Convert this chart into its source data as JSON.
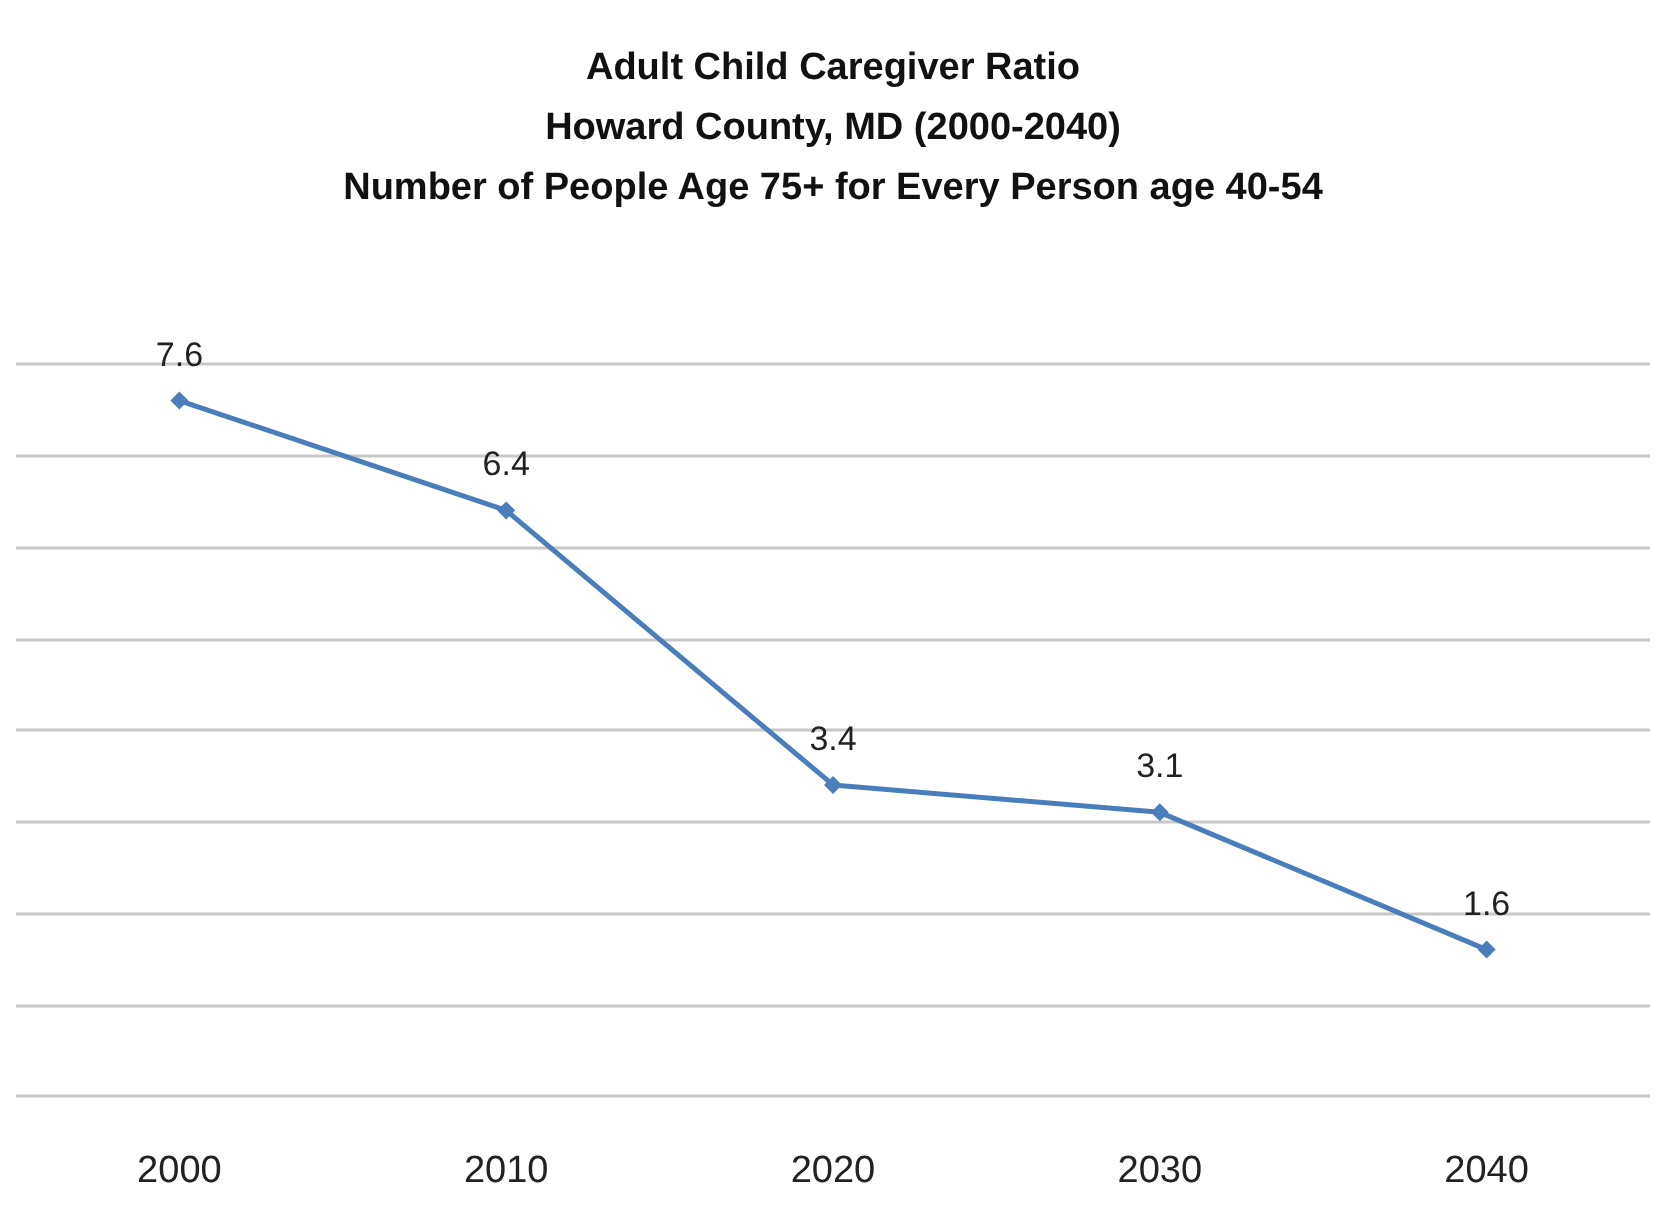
{
  "chart_data": {
    "type": "line",
    "title": "Adult Child Caregiver Ratio\nHoward County, MD (2000-2040)\nNumber of People Age 75+ for Every Person age 40-54",
    "categories": [
      "2000",
      "2010",
      "2020",
      "2030",
      "2040"
    ],
    "series": [
      {
        "color": "#4a7ebb",
        "values": [
          7.6,
          6.4,
          3.4,
          3.1,
          1.6
        ]
      }
    ],
    "ylim": [
      0,
      8
    ],
    "yticks": [
      {
        "value": 0,
        "label": null
      },
      {
        "value": 1,
        "label": null
      },
      {
        "value": 2,
        "label": null
      },
      {
        "value": 3,
        "label": null
      },
      {
        "value": 4,
        "label": null
      },
      {
        "value": 5,
        "label": null
      },
      {
        "value": 6,
        "label": null
      },
      {
        "value": 7,
        "label": null
      },
      {
        "value": 8,
        "label": null
      }
    ],
    "tick_labels": "x",
    "grid": "y",
    "data_labels": true,
    "marker": "diamond",
    "line_style": "solid"
  }
}
